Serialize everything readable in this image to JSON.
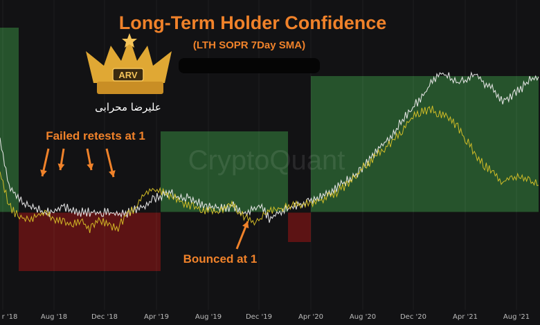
{
  "chart_data": {
    "type": "line",
    "title": "Long-Term Holder Confidence",
    "subtitle": "(LTH SOPR 7Day SMA)",
    "watermark": "CryptoQuant",
    "logo_text": "ARV",
    "signature": "علیرضا محرابی",
    "x_ticks": [
      "r '18",
      "Aug '18",
      "Dec '18",
      "Apr '19",
      "Aug '19",
      "Dec '19",
      "Apr '20",
      "Aug '20",
      "Dec '20",
      "Apr '21",
      "Aug '21"
    ],
    "series": [
      {
        "color": "#e8e8e8",
        "values": [
          2.1,
          1.4,
          1.2,
          1.1,
          1.05,
          1.0,
          1.0,
          1.1,
          1.02,
          1.0,
          1.0,
          1.0,
          0.99,
          0.98,
          0.97,
          1.05,
          1.08,
          1.2,
          1.25,
          1.3,
          1.2,
          1.22,
          1.15,
          1.1,
          1.08,
          1.05,
          1.1,
          1.0,
          1.02,
          1.12,
          0.9,
          1.0,
          1.05,
          1.1,
          1.15,
          1.18,
          1.25,
          1.32,
          1.4,
          1.5,
          1.6,
          1.75,
          1.9,
          2.05,
          2.2,
          2.4,
          2.55,
          2.7,
          2.9,
          3.05,
          3.0,
          2.9,
          2.95,
          3.05,
          2.88,
          2.82,
          2.65,
          2.72,
          2.82,
          2.95,
          3.0
        ]
      },
      {
        "color": "#d9c227",
        "values": [
          1.6,
          1.1,
          0.95,
          0.88,
          0.95,
          1.0,
          0.92,
          0.86,
          0.82,
          0.86,
          0.76,
          0.92,
          0.82,
          0.75,
          0.95,
          1.05,
          1.25,
          1.35,
          1.3,
          1.25,
          1.18,
          1.1,
          1.08,
          1.02,
          1.0,
          1.05,
          1.1,
          0.95,
          0.86,
          0.9,
          1.02,
          1.05,
          1.08,
          1.1,
          1.12,
          1.15,
          1.2,
          1.25,
          1.35,
          1.45,
          1.6,
          1.72,
          1.85,
          1.95,
          2.1,
          2.25,
          2.4,
          2.5,
          2.52,
          2.45,
          2.38,
          2.25,
          2.05,
          1.85,
          1.68,
          1.58,
          1.45,
          1.5,
          1.55,
          1.45,
          1.4
        ]
      }
    ],
    "annotations": [
      {
        "text": "Failed retests at 1"
      },
      {
        "text": "Bounced at 1"
      }
    ],
    "zone_colors": {
      "above": "#2e6a34",
      "below": "#6a1414"
    },
    "legend": "none",
    "grid": false
  }
}
